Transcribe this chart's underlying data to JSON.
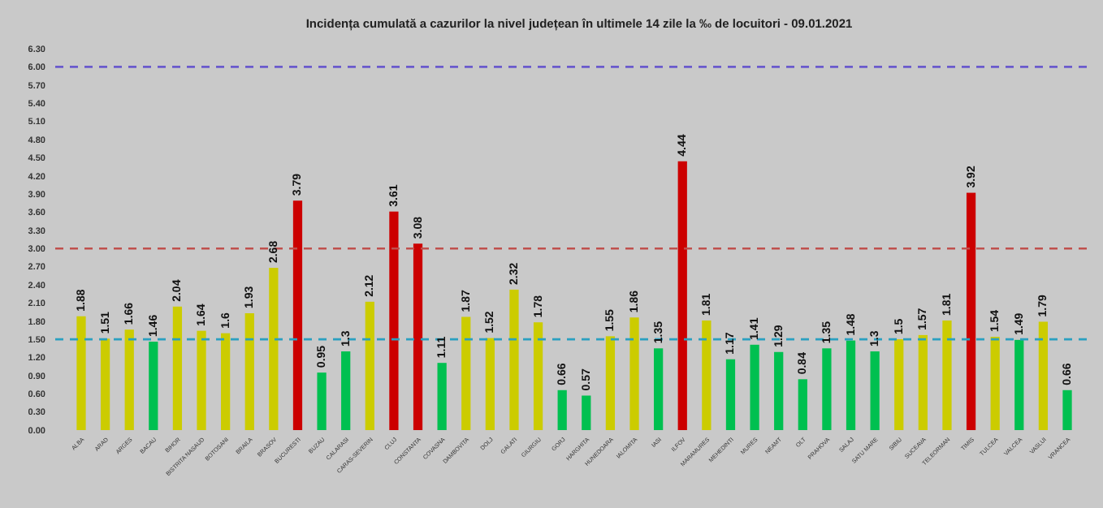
{
  "chart_data": {
    "type": "bar",
    "title": "Incidența cumulată a cazurilor la nivel județean în ultimele 14 zile la ‰ de locuitori - 09.01.2021",
    "categories": [
      "ALBA",
      "ARAD",
      "ARGES",
      "BACAU",
      "BIHOR",
      "BISTRITA NASAUD",
      "BOTOSANI",
      "BRAILA",
      "BRASOV",
      "BUCURESTI",
      "BUZAU",
      "CALARASI",
      "CARAS-SEVERIN",
      "CLUJ",
      "CONSTANTA",
      "COVASNA",
      "DAMBOVITA",
      "DOLJ",
      "GALATI",
      "GIURGIU",
      "GORJ",
      "HARGHITA",
      "HUNEDOARA",
      "IALOMITA",
      "IASI",
      "ILFOV",
      "MARAMURES",
      "MEHEDINTI",
      "MURES",
      "NEAMT",
      "OLT",
      "PRAHOVA",
      "SALAJ",
      "SATU MARE",
      "SIBIU",
      "SUCEAVA",
      "TELEORMAN",
      "TIMIS",
      "TULCEA",
      "VALCEA",
      "VASLUI",
      "VRANCEA"
    ],
    "values": [
      1.88,
      1.51,
      1.66,
      1.46,
      2.04,
      1.64,
      1.6,
      1.93,
      2.68,
      3.79,
      0.95,
      1.3,
      2.12,
      3.61,
      3.08,
      1.11,
      1.87,
      1.52,
      2.32,
      1.78,
      0.66,
      0.57,
      1.55,
      1.86,
      1.35,
      4.44,
      1.81,
      1.17,
      1.41,
      1.29,
      0.84,
      1.35,
      1.48,
      1.3,
      1.5,
      1.57,
      1.81,
      3.92,
      1.54,
      1.49,
      1.79,
      0.66
    ],
    "colors": [
      "#cccc00",
      "#cccc00",
      "#cccc00",
      "#00c050",
      "#cccc00",
      "#cccc00",
      "#cccc00",
      "#cccc00",
      "#cccc00",
      "#cc0000",
      "#00c050",
      "#00c050",
      "#cccc00",
      "#cc0000",
      "#cc0000",
      "#00c050",
      "#cccc00",
      "#cccc00",
      "#cccc00",
      "#cccc00",
      "#00c050",
      "#00c050",
      "#cccc00",
      "#cccc00",
      "#00c050",
      "#cc0000",
      "#cccc00",
      "#00c050",
      "#00c050",
      "#00c050",
      "#00c050",
      "#00c050",
      "#00c050",
      "#00c050",
      "#cccc00",
      "#cccc00",
      "#cccc00",
      "#cc0000",
      "#cccc00",
      "#00c050",
      "#cccc00",
      "#00c050"
    ],
    "ylim": [
      0,
      6.3
    ],
    "yticks": [
      {
        "value": 0,
        "label": "0.00"
      },
      {
        "value": 0.3,
        "label": "0.30"
      },
      {
        "value": 0.6,
        "label": "0.60"
      },
      {
        "value": 0.9,
        "label": "0.90"
      },
      {
        "value": 1.2,
        "label": "1.20"
      },
      {
        "value": 1.5,
        "label": "1.50"
      },
      {
        "value": 1.8,
        "label": "1.80"
      },
      {
        "value": 2.1,
        "label": "2.10"
      },
      {
        "value": 2.4,
        "label": "2.40"
      },
      {
        "value": 2.7,
        "label": "2.70"
      },
      {
        "value": 3,
        "label": "3.00"
      },
      {
        "value": 3.3,
        "label": "3.30"
      },
      {
        "value": 3.6,
        "label": "3.60"
      },
      {
        "value": 3.9,
        "label": "3.90"
      },
      {
        "value": 4.2,
        "label": "4.20"
      },
      {
        "value": 4.5,
        "label": "4.50"
      },
      {
        "value": 4.8,
        "label": "4.80"
      },
      {
        "value": 5.1,
        "label": "5.10"
      },
      {
        "value": 5.4,
        "label": "5.40"
      },
      {
        "value": 5.7,
        "label": "5.70"
      },
      {
        "value": 6,
        "label": "6.00"
      },
      {
        "value": 6.3,
        "label": "6.30"
      }
    ],
    "ref_lines": [
      {
        "axis": "y",
        "value": 6,
        "color": "#6a5acd",
        "line_style": "dashed"
      },
      {
        "axis": "y",
        "value": 3,
        "color": "#c0504d",
        "line_style": "dashed"
      },
      {
        "axis": "y",
        "value": 1.5,
        "color": "#2aa0c0",
        "line_style": "dashed"
      }
    ],
    "data_labels": true,
    "grid": false
  }
}
